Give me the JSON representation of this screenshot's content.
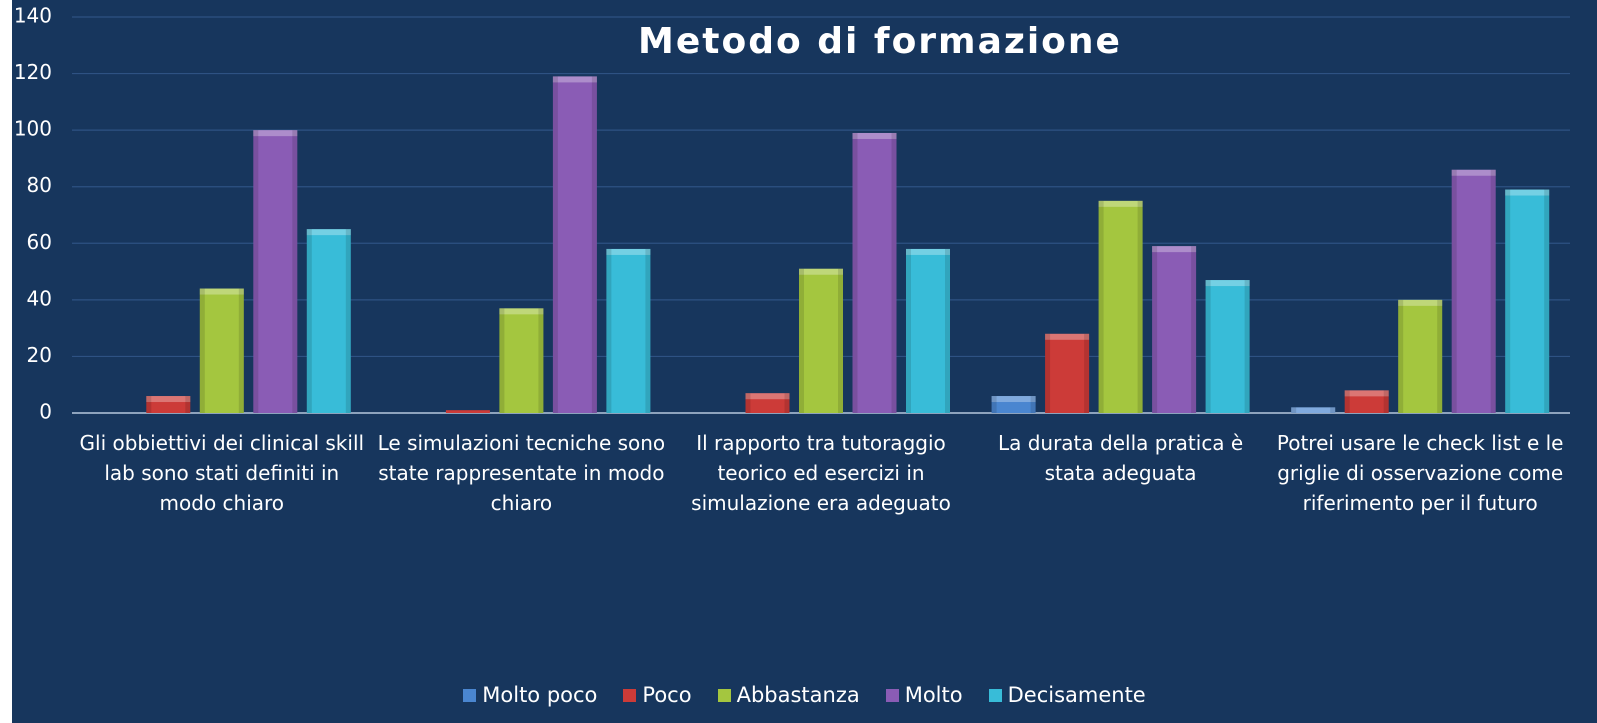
{
  "chart_data": {
    "type": "bar",
    "title": "Metodo di formazione",
    "categories": [
      "Gli obbiettivi dei clinical skill lab sono stati definiti in modo chiaro",
      "Le simulazioni tecniche sono state rappresentate in modo chiaro",
      "Il rapporto tra tutoraggio teorico ed esercizi in simulazione era adeguato",
      "La durata della pratica è stata adeguata",
      "Potrei usare le check list e le griglie di osservazione come riferimento per il futuro"
    ],
    "series": [
      {
        "name": "Molto poco",
        "color": "#4a86d0",
        "values": [
          0,
          0,
          0,
          6,
          2
        ]
      },
      {
        "name": "Poco",
        "color": "#cc3b38",
        "values": [
          6,
          1,
          7,
          28,
          8
        ]
      },
      {
        "name": "Abbastanza",
        "color": "#a4c63f",
        "values": [
          44,
          37,
          51,
          75,
          40
        ]
      },
      {
        "name": "Molto",
        "color": "#8a5cb5",
        "values": [
          100,
          119,
          99,
          59,
          86
        ]
      },
      {
        "name": "Decisamente",
        "color": "#38bcd8",
        "values": [
          65,
          58,
          58,
          47,
          79
        ]
      }
    ],
    "ylim": [
      0,
      140
    ],
    "yticks": [
      0,
      20,
      40,
      60,
      80,
      100,
      120,
      140
    ],
    "grid": true,
    "legend": "bottom"
  }
}
